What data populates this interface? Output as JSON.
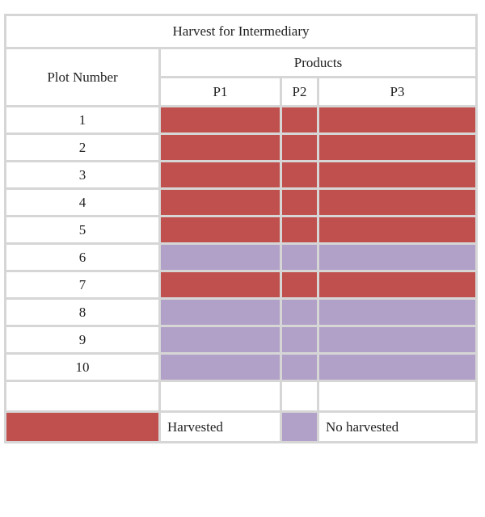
{
  "title": "Harvest for Intermediary",
  "headers": {
    "plot": "Plot Number",
    "products": "Products",
    "p1": "P1",
    "p2": "P2",
    "p3": "P3"
  },
  "colors": {
    "harvested": "#c0504d",
    "not_harvested": "#b1a0c7"
  },
  "rows": [
    {
      "plot": "1",
      "status": "harvested"
    },
    {
      "plot": "2",
      "status": "harvested"
    },
    {
      "plot": "3",
      "status": "harvested"
    },
    {
      "plot": "4",
      "status": "harvested"
    },
    {
      "plot": "5",
      "status": "harvested"
    },
    {
      "plot": "6",
      "status": "not_harvested"
    },
    {
      "plot": "7",
      "status": "harvested"
    },
    {
      "plot": "8",
      "status": "not_harvested"
    },
    {
      "plot": "9",
      "status": "not_harvested"
    },
    {
      "plot": "10",
      "status": "not_harvested"
    }
  ],
  "legend": {
    "harvested": "Harvested",
    "not_harvested": "No harvested"
  }
}
